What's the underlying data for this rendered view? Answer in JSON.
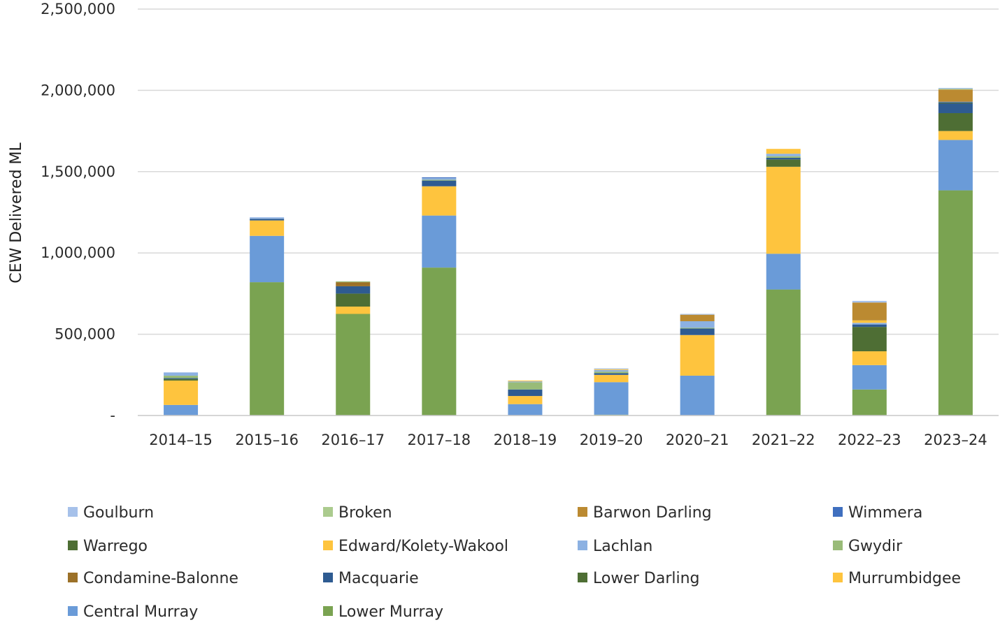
{
  "chart_data": {
    "type": "bar",
    "stacked": true,
    "title": "",
    "xlabel": "",
    "ylabel": "CEW Delivered ML",
    "ylim": [
      0,
      2500000
    ],
    "yticks": [
      0,
      500000,
      1000000,
      1500000,
      2000000,
      2500000
    ],
    "ytick_labels": [
      "-",
      "500,000",
      "1,000,000",
      "1,500,000",
      "2,000,000",
      "2,500,000"
    ],
    "grid": true,
    "legend_position": "bottom",
    "categories": [
      "2014–15",
      "2015–16",
      "2016–17",
      "2017–18",
      "2018–19",
      "2019–20",
      "2020–21",
      "2021–22",
      "2022–23",
      "2023–24"
    ],
    "series": [
      {
        "name": "Lower Murray",
        "color": "#7aa351",
        "values": [
          0,
          820000,
          625000,
          910000,
          0,
          5000,
          0,
          775000,
          160000,
          1385000
        ]
      },
      {
        "name": "Central Murray",
        "color": "#6a9bd8",
        "values": [
          65000,
          285000,
          0,
          320000,
          70000,
          200000,
          245000,
          220000,
          150000,
          310000
        ]
      },
      {
        "name": "Murrumbidgee",
        "color": "#fec43e",
        "values": [
          150000,
          95000,
          45000,
          180000,
          50000,
          45000,
          250000,
          535000,
          85000,
          55000
        ]
      },
      {
        "name": "Lower Darling",
        "color": "#4e6e34",
        "values": [
          10000,
          0,
          80000,
          0,
          0,
          0,
          0,
          45000,
          150000,
          110000
        ]
      },
      {
        "name": "Macquarie",
        "color": "#2e5b91",
        "values": [
          5000,
          10000,
          45000,
          35000,
          40000,
          10000,
          40000,
          10000,
          15000,
          60000
        ]
      },
      {
        "name": "Condamine-Balonne",
        "color": "#9c7128",
        "values": [
          0,
          0,
          25000,
          0,
          0,
          0,
          0,
          0,
          0,
          0
        ]
      },
      {
        "name": "Gwydir",
        "color": "#99bb78",
        "values": [
          15000,
          0,
          5000,
          5000,
          45000,
          10000,
          5000,
          10000,
          0,
          0
        ]
      },
      {
        "name": "Lachlan",
        "color": "#8cb1e2",
        "values": [
          20000,
          5000,
          0,
          10000,
          5000,
          10000,
          40000,
          15000,
          10000,
          0
        ]
      },
      {
        "name": "Edward/Kolety-Wakool",
        "color": "#fec43e",
        "values": [
          0,
          0,
          0,
          0,
          5000,
          5000,
          0,
          30000,
          15000,
          0
        ]
      },
      {
        "name": "Warrego",
        "color": "#4e6e34",
        "values": [
          0,
          0,
          0,
          0,
          0,
          0,
          0,
          0,
          0,
          5000
        ]
      },
      {
        "name": "Wimmera",
        "color": "#3f6fbf",
        "values": [
          0,
          0,
          0,
          5000,
          0,
          0,
          0,
          0,
          0,
          5000
        ]
      },
      {
        "name": "Barwon Darling",
        "color": "#bb8a31",
        "values": [
          0,
          0,
          0,
          0,
          0,
          0,
          40000,
          0,
          110000,
          75000
        ]
      },
      {
        "name": "Broken",
        "color": "#abcb8e",
        "values": [
          0,
          0,
          0,
          0,
          0,
          0,
          0,
          0,
          0,
          5000
        ]
      },
      {
        "name": "Goulburn",
        "color": "#a6c1ea",
        "values": [
          0,
          5000,
          0,
          0,
          0,
          5000,
          5000,
          0,
          10000,
          5000
        ]
      }
    ],
    "legend": [
      {
        "name": "Goulburn",
        "color": "#a6c1ea"
      },
      {
        "name": "Broken",
        "color": "#abcb8e"
      },
      {
        "name": "Barwon Darling",
        "color": "#bb8a31"
      },
      {
        "name": "Wimmera",
        "color": "#3f6fbf"
      },
      {
        "name": "Warrego",
        "color": "#4e6e34"
      },
      {
        "name": "Edward/Kolety-Wakool",
        "color": "#fec43e"
      },
      {
        "name": "Lachlan",
        "color": "#8cb1e2"
      },
      {
        "name": "Gwydir",
        "color": "#99bb78"
      },
      {
        "name": "Condamine-Balonne",
        "color": "#9c7128"
      },
      {
        "name": "Macquarie",
        "color": "#2e5b91"
      },
      {
        "name": "Lower Darling",
        "color": "#4e6e34"
      },
      {
        "name": "Murrumbidgee",
        "color": "#fec43e"
      },
      {
        "name": "Central Murray",
        "color": "#6a9bd8"
      },
      {
        "name": "Lower Murray",
        "color": "#7aa351"
      }
    ]
  }
}
